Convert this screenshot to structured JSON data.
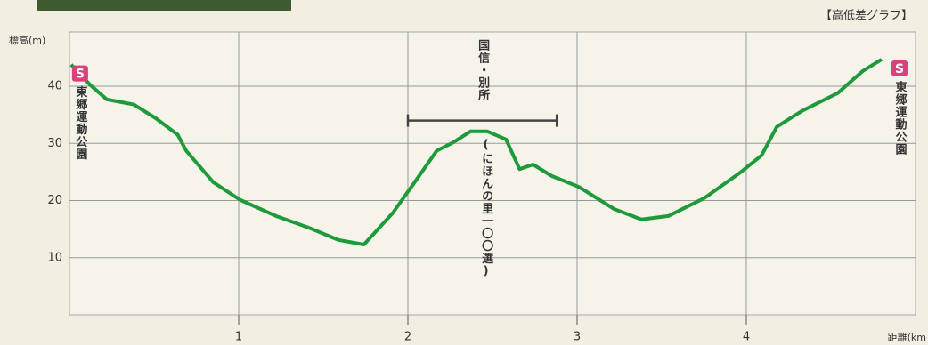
{
  "chart_data": {
    "type": "line",
    "title": "【高低差グラフ】",
    "y_label": "標高(m)",
    "x_label": "距離(km",
    "xlim": [
      0,
      5
    ],
    "ylim": [
      0,
      49.5
    ],
    "xticks": [
      1,
      2,
      3,
      4
    ],
    "yticks": [
      10,
      20,
      30,
      40
    ],
    "grid": true,
    "series": [
      {
        "color": "#1f9a3a",
        "x": [
          0.01,
          0.12,
          0.22,
          0.38,
          0.51,
          0.64,
          0.69,
          0.85,
          1.01,
          1.22,
          1.41,
          1.59,
          1.74,
          1.91,
          2.04,
          2.17,
          2.27,
          2.37,
          2.47,
          2.58,
          2.66,
          2.74,
          2.85,
          3.01,
          3.22,
          3.38,
          3.54,
          3.75,
          3.96,
          4.09,
          4.18,
          4.33,
          4.54,
          4.69,
          4.8
        ],
        "values": [
          43.8,
          40.3,
          37.7,
          36.8,
          34.4,
          31.5,
          28.7,
          23.2,
          20.1,
          17.3,
          15.3,
          13.1,
          12.3,
          17.8,
          23.2,
          28.7,
          30.2,
          32.1,
          32.1,
          30.7,
          25.5,
          26.3,
          24.3,
          22.4,
          18.5,
          16.7,
          17.3,
          20.4,
          24.8,
          27.9,
          32.9,
          35.7,
          38.8,
          42.7,
          44.7
        ]
      }
    ],
    "range_annotation": {
      "text": "国信・別所",
      "note": "(にほんの里一〇〇選)",
      "x": [
        2.0,
        2.88
      ],
      "y": 34
    },
    "markers": [
      {
        "badge": "S",
        "label": "東郷運動公園"
      },
      {
        "badge": "S",
        "label": "東郷運動公園"
      }
    ]
  }
}
